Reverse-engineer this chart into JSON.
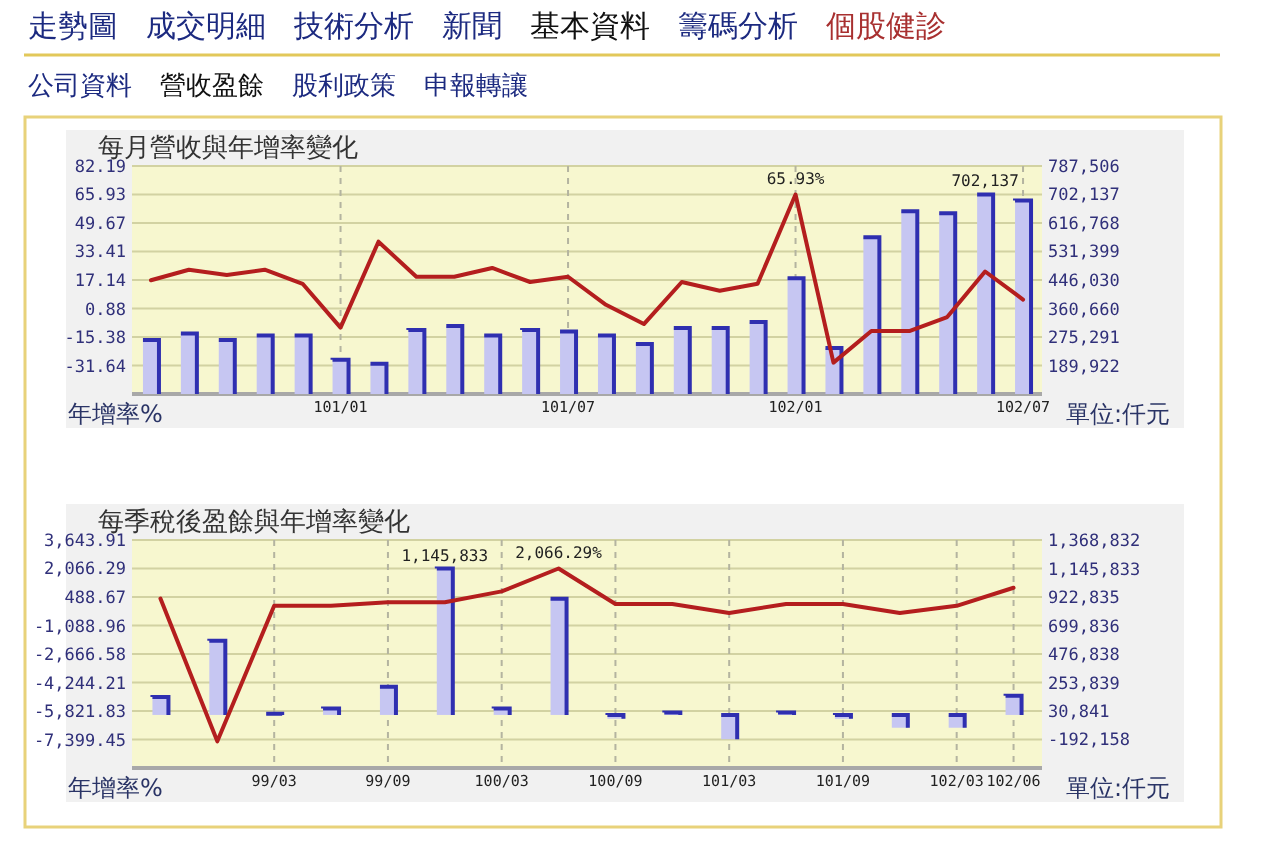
{
  "chart_data": [
    {
      "type": "other",
      "annotations": [
        "走勢圖",
        "成交明細",
        "技術分析",
        "新聞",
        "基本資料",
        "籌碼分析",
        "個股健診"
      ],
      "colors": [
        "#1c2a80",
        "#1c2a80",
        "#1c2a80",
        "#1c2a80",
        "#111111",
        "#1c2a80",
        "#a83030"
      ]
    },
    {
      "type": "other",
      "annotations": [
        "公司資料",
        "營收盈餘",
        "股利政策",
        "申報轉讓"
      ],
      "colors": [
        "#1c2a80",
        "#111111",
        "#1c2a80",
        "#1c2a80"
      ]
    },
    {
      "type": "bar",
      "title": "每月營收與年增率變化",
      "ylabel": "年增率%",
      "y2label": "單位:仟元",
      "grid": true,
      "categories": [
        null,
        null,
        null,
        null,
        null,
        "101/01",
        null,
        null,
        null,
        null,
        null,
        "101/07",
        null,
        null,
        null,
        null,
        null,
        "102/01",
        null,
        null,
        null,
        null,
        null,
        "102/07"
      ],
      "series": [
        {
          "type": "bar",
          "axis": "y2",
          "color": "#c6c6f2",
          "values": [
            266000,
            286000,
            266000,
            280000,
            280000,
            207000,
            195000,
            296000,
            308000,
            280000,
            296000,
            292000,
            280000,
            254000,
            302000,
            302000,
            320000,
            451000,
            242000,
            574000,
            652000,
            646000,
            702137,
            684000
          ],
          "value_labels": [
            null,
            null,
            null,
            null,
            null,
            null,
            null,
            null,
            null,
            null,
            null,
            null,
            null,
            null,
            null,
            null,
            null,
            null,
            null,
            null,
            null,
            null,
            "702,137",
            null
          ]
        },
        {
          "type": "line",
          "color": "#b41e1e",
          "values": [
            17,
            23,
            20,
            23,
            15,
            -10,
            39,
            19,
            19,
            24,
            16,
            19,
            3,
            -8,
            16,
            11,
            15,
            65.93,
            -30,
            -12,
            -12,
            -4,
            22,
            6
          ],
          "value_labels": [
            null,
            null,
            null,
            null,
            null,
            null,
            null,
            null,
            null,
            null,
            null,
            null,
            null,
            null,
            null,
            null,
            null,
            "65.93%",
            null,
            null,
            null,
            null,
            null,
            null
          ]
        }
      ],
      "ylim": [
        -47.9,
        82.19
      ],
      "yticks": [
        82.19,
        65.93,
        49.67,
        33.41,
        17.14,
        0.88,
        -15.38,
        -31.64
      ],
      "y2lim": [
        104553,
        787506
      ],
      "y2ticks": [
        {
          "value": 787506,
          "label": "787,506"
        },
        {
          "value": 702137,
          "label": "702,137"
        },
        {
          "value": 616768,
          "label": "616,768"
        },
        {
          "value": 531399,
          "label": "531,399"
        },
        {
          "value": 446030,
          "label": "446,030"
        },
        {
          "value": 360660,
          "label": "360,660"
        },
        {
          "value": 275291,
          "label": "275,291"
        },
        {
          "value": 189922,
          "label": "189,922"
        }
      ]
    },
    {
      "type": "bar",
      "title": "每季稅後盈餘與年增率變化",
      "ylabel": "年增率%",
      "y2label": "單位:仟元",
      "grid": true,
      "categories": [
        null,
        null,
        "99/03",
        null,
        "99/09",
        null,
        "100/03",
        null,
        "100/09",
        null,
        "101/03",
        null,
        "101/09",
        null,
        "102/03",
        "102/06"
      ],
      "series": [
        {
          "type": "bar",
          "axis": "y2",
          "color": "#c6c6f2",
          "values": [
            140000,
            580000,
            10000,
            50000,
            220000,
            1145833,
            50000,
            910000,
            -30000,
            20000,
            -190000,
            20000,
            -30000,
            -100000,
            -100000,
            150000
          ],
          "value_labels": [
            null,
            null,
            null,
            null,
            null,
            "1,145,833",
            null,
            null,
            null,
            null,
            null,
            null,
            null,
            null,
            null,
            null
          ]
        },
        {
          "type": "line",
          "color": "#b41e1e",
          "values": [
            400,
            -7500,
            0,
            0,
            200,
            200,
            800,
            2066.29,
            100,
            100,
            -400,
            100,
            100,
            -400,
            0,
            1000
          ],
          "value_labels": [
            null,
            null,
            null,
            null,
            null,
            null,
            null,
            "2,066.29%",
            null,
            null,
            null,
            null,
            null,
            null,
            null,
            null
          ]
        }
      ],
      "ylim": [
        -8977.07,
        3643.91
      ],
      "yticks": [
        {
          "value": 3643.91,
          "label": "3,643.91"
        },
        {
          "value": 2066.29,
          "label": "2,066.29"
        },
        488.67,
        {
          "value": -1088.96,
          "label": "-1,088.96"
        },
        {
          "value": -2666.58,
          "label": "-2,666.58"
        },
        {
          "value": -4244.21,
          "label": "-4,244.21"
        },
        {
          "value": -5821.83,
          "label": "-5,821.83"
        },
        {
          "value": -7399.45,
          "label": "-7,399.45"
        }
      ],
      "y2lim": [
        -415157,
        1368832
      ],
      "y2ticks": [
        {
          "value": 1368832,
          "label": "1,368,832"
        },
        {
          "value": 1145833,
          "label": "1,145,833"
        },
        {
          "value": 922835,
          "label": "922,835"
        },
        {
          "value": 699836,
          "label": "699,836"
        },
        {
          "value": 476838,
          "label": "476,838"
        },
        {
          "value": 253839,
          "label": "253,839"
        },
        {
          "value": 30841,
          "label": "30,841"
        },
        {
          "value": -192158,
          "label": "-192,158"
        }
      ]
    }
  ]
}
